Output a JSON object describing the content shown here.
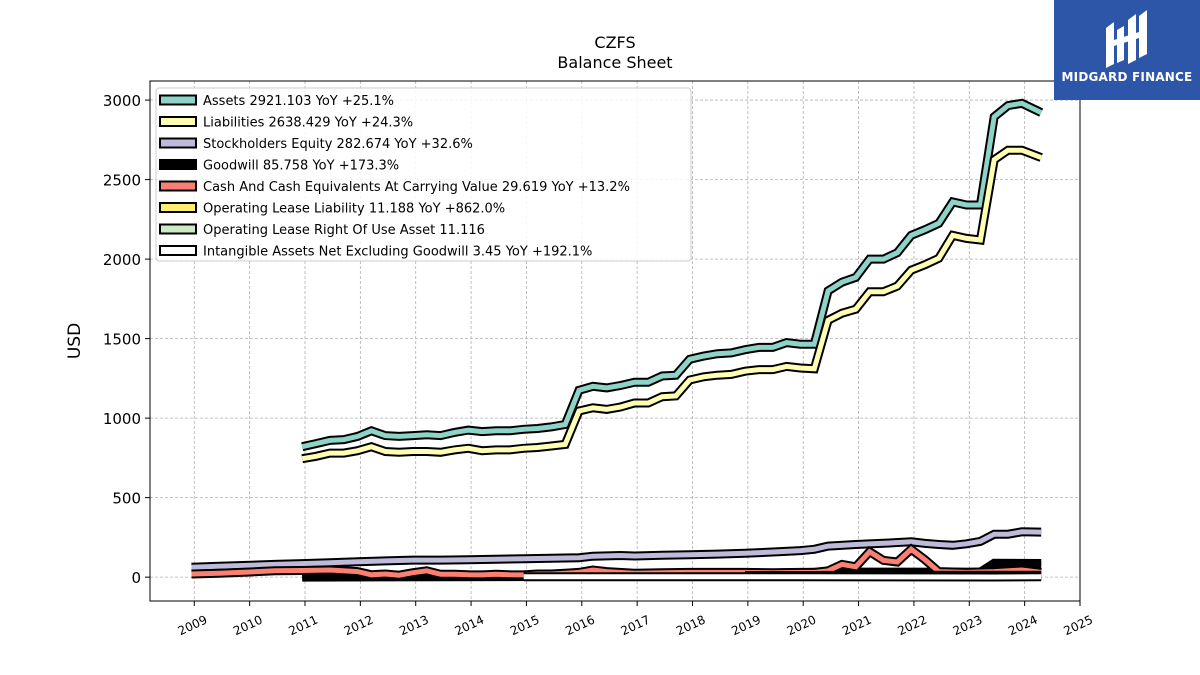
{
  "brand": {
    "name": "MIDGARD FINANCE",
    "color": "#2d56a8"
  },
  "chart_data": {
    "type": "line",
    "title": "CZFS",
    "subtitle": "Balance  Sheet",
    "ylabel": "USD",
    "xlabel": "",
    "xlim": [
      2008.2,
      2025.0
    ],
    "ylim": [
      -150,
      3120
    ],
    "x_ticks": [
      2009,
      2010,
      2011,
      2012,
      2013,
      2014,
      2015,
      2016,
      2017,
      2018,
      2019,
      2020,
      2021,
      2022,
      2023,
      2024,
      2025
    ],
    "y_ticks": [
      0,
      500,
      1000,
      1500,
      2000,
      2500,
      3000
    ],
    "grid": true,
    "legend_position": "top-left",
    "series": [
      {
        "name": "Assets",
        "legend": "Assets  2921.103 YoY +25.1%",
        "color": "#8dd3c7",
        "points": [
          [
            2010.95,
            820
          ],
          [
            2011.2,
            840
          ],
          [
            2011.45,
            860
          ],
          [
            2011.7,
            865
          ],
          [
            2011.95,
            885
          ],
          [
            2012.2,
            920
          ],
          [
            2012.45,
            890
          ],
          [
            2012.7,
            885
          ],
          [
            2012.95,
            890
          ],
          [
            2013.2,
            895
          ],
          [
            2013.45,
            890
          ],
          [
            2013.7,
            910
          ],
          [
            2013.95,
            925
          ],
          [
            2014.2,
            915
          ],
          [
            2014.45,
            920
          ],
          [
            2014.7,
            920
          ],
          [
            2014.95,
            930
          ],
          [
            2015.2,
            935
          ],
          [
            2015.45,
            945
          ],
          [
            2015.7,
            960
          ],
          [
            2015.95,
            1175
          ],
          [
            2016.2,
            1200
          ],
          [
            2016.45,
            1190
          ],
          [
            2016.7,
            1205
          ],
          [
            2016.95,
            1225
          ],
          [
            2017.2,
            1225
          ],
          [
            2017.45,
            1265
          ],
          [
            2017.7,
            1270
          ],
          [
            2017.95,
            1370
          ],
          [
            2018.2,
            1390
          ],
          [
            2018.45,
            1405
          ],
          [
            2018.7,
            1410
          ],
          [
            2018.95,
            1430
          ],
          [
            2019.2,
            1445
          ],
          [
            2019.45,
            1445
          ],
          [
            2019.7,
            1475
          ],
          [
            2019.95,
            1465
          ],
          [
            2020.2,
            1465
          ],
          [
            2020.45,
            1800
          ],
          [
            2020.7,
            1855
          ],
          [
            2020.95,
            1885
          ],
          [
            2021.2,
            2000
          ],
          [
            2021.45,
            2000
          ],
          [
            2021.7,
            2040
          ],
          [
            2021.95,
            2150
          ],
          [
            2022.2,
            2185
          ],
          [
            2022.45,
            2225
          ],
          [
            2022.7,
            2360
          ],
          [
            2022.95,
            2340
          ],
          [
            2023.2,
            2340
          ],
          [
            2023.45,
            2895
          ],
          [
            2023.7,
            2965
          ],
          [
            2023.95,
            2980
          ],
          [
            2024.3,
            2921
          ]
        ]
      },
      {
        "name": "Liabilities",
        "legend": "Liabilities  2638.429 YoY +24.3%",
        "color": "#ffffb3",
        "points": [
          [
            2010.95,
            745
          ],
          [
            2011.2,
            760
          ],
          [
            2011.45,
            780
          ],
          [
            2011.7,
            780
          ],
          [
            2011.95,
            795
          ],
          [
            2012.2,
            820
          ],
          [
            2012.45,
            790
          ],
          [
            2012.7,
            785
          ],
          [
            2012.95,
            790
          ],
          [
            2013.2,
            790
          ],
          [
            2013.45,
            785
          ],
          [
            2013.7,
            800
          ],
          [
            2013.95,
            810
          ],
          [
            2014.2,
            795
          ],
          [
            2014.45,
            800
          ],
          [
            2014.7,
            800
          ],
          [
            2014.95,
            810
          ],
          [
            2015.2,
            815
          ],
          [
            2015.45,
            825
          ],
          [
            2015.7,
            835
          ],
          [
            2015.95,
            1045
          ],
          [
            2016.2,
            1065
          ],
          [
            2016.45,
            1055
          ],
          [
            2016.7,
            1070
          ],
          [
            2016.95,
            1095
          ],
          [
            2017.2,
            1095
          ],
          [
            2017.45,
            1135
          ],
          [
            2017.7,
            1140
          ],
          [
            2017.95,
            1240
          ],
          [
            2018.2,
            1260
          ],
          [
            2018.45,
            1270
          ],
          [
            2018.7,
            1275
          ],
          [
            2018.95,
            1295
          ],
          [
            2019.2,
            1305
          ],
          [
            2019.45,
            1305
          ],
          [
            2019.7,
            1325
          ],
          [
            2019.95,
            1315
          ],
          [
            2020.2,
            1310
          ],
          [
            2020.45,
            1615
          ],
          [
            2020.7,
            1660
          ],
          [
            2020.95,
            1685
          ],
          [
            2021.2,
            1795
          ],
          [
            2021.45,
            1795
          ],
          [
            2021.7,
            1830
          ],
          [
            2021.95,
            1930
          ],
          [
            2022.2,
            1965
          ],
          [
            2022.45,
            2005
          ],
          [
            2022.7,
            2150
          ],
          [
            2022.95,
            2130
          ],
          [
            2023.2,
            2120
          ],
          [
            2023.45,
            2625
          ],
          [
            2023.7,
            2685
          ],
          [
            2023.95,
            2685
          ],
          [
            2024.3,
            2638
          ]
        ]
      },
      {
        "name": "Stockholders Equity",
        "legend": "Stockholders Equity  282.674 YoY +32.6%",
        "color": "#bebada",
        "points": [
          [
            2008.95,
            62
          ],
          [
            2009.45,
            68
          ],
          [
            2009.95,
            74
          ],
          [
            2010.45,
            80
          ],
          [
            2010.95,
            85
          ],
          [
            2011.45,
            90
          ],
          [
            2011.95,
            97
          ],
          [
            2012.45,
            102
          ],
          [
            2012.95,
            107
          ],
          [
            2013.45,
            107
          ],
          [
            2013.95,
            110
          ],
          [
            2014.45,
            113
          ],
          [
            2014.95,
            116
          ],
          [
            2015.45,
            119
          ],
          [
            2015.95,
            122
          ],
          [
            2016.2,
            132
          ],
          [
            2016.7,
            136
          ],
          [
            2016.95,
            133
          ],
          [
            2017.45,
            138
          ],
          [
            2017.95,
            141
          ],
          [
            2018.45,
            145
          ],
          [
            2018.95,
            150
          ],
          [
            2019.45,
            158
          ],
          [
            2019.95,
            167
          ],
          [
            2020.2,
            175
          ],
          [
            2020.45,
            195
          ],
          [
            2020.95,
            205
          ],
          [
            2021.45,
            213
          ],
          [
            2021.95,
            222
          ],
          [
            2022.2,
            212
          ],
          [
            2022.45,
            205
          ],
          [
            2022.7,
            200
          ],
          [
            2022.95,
            210
          ],
          [
            2023.2,
            225
          ],
          [
            2023.45,
            270
          ],
          [
            2023.7,
            270
          ],
          [
            2023.95,
            285
          ],
          [
            2024.3,
            283
          ]
        ]
      },
      {
        "name": "Goodwill",
        "legend": "Goodwill  85.758 YoY +173.3%",
        "color": "#000000",
        "points": [
          [
            2010.95,
            0
          ],
          [
            2015.95,
            5
          ],
          [
            2020.45,
            32
          ],
          [
            2023.2,
            31
          ],
          [
            2023.45,
            88
          ],
          [
            2024.3,
            86
          ]
        ]
      },
      {
        "name": "Cash And Cash Equivalents At Carrying Value",
        "legend": "Cash And Cash Equivalents At Carrying Value  29.619 YoY +13.2%",
        "color": "#fb8072",
        "points": [
          [
            2008.95,
            20
          ],
          [
            2009.45,
            25
          ],
          [
            2009.95,
            32
          ],
          [
            2010.45,
            40
          ],
          [
            2010.95,
            42
          ],
          [
            2011.45,
            45
          ],
          [
            2011.95,
            35
          ],
          [
            2012.2,
            15
          ],
          [
            2012.45,
            20
          ],
          [
            2012.7,
            12
          ],
          [
            2012.95,
            28
          ],
          [
            2013.2,
            40
          ],
          [
            2013.45,
            18
          ],
          [
            2013.7,
            18
          ],
          [
            2013.95,
            15
          ],
          [
            2014.2,
            14
          ],
          [
            2014.45,
            18
          ],
          [
            2014.7,
            15
          ],
          [
            2014.95,
            14
          ],
          [
            2015.2,
            20
          ],
          [
            2015.45,
            20
          ],
          [
            2015.7,
            25
          ],
          [
            2015.95,
            30
          ],
          [
            2016.2,
            45
          ],
          [
            2016.45,
            35
          ],
          [
            2016.95,
            25
          ],
          [
            2017.45,
            28
          ],
          [
            2017.95,
            30
          ],
          [
            2018.45,
            30
          ],
          [
            2018.95,
            30
          ],
          [
            2019.45,
            28
          ],
          [
            2019.95,
            30
          ],
          [
            2020.2,
            30
          ],
          [
            2020.45,
            40
          ],
          [
            2020.7,
            80
          ],
          [
            2020.95,
            65
          ],
          [
            2021.2,
            160
          ],
          [
            2021.45,
            105
          ],
          [
            2021.7,
            95
          ],
          [
            2021.95,
            175
          ],
          [
            2022.2,
            110
          ],
          [
            2022.45,
            35
          ],
          [
            2022.95,
            30
          ],
          [
            2023.45,
            35
          ],
          [
            2023.95,
            45
          ],
          [
            2024.3,
            30
          ]
        ]
      },
      {
        "name": "Operating Lease Liability",
        "legend": "Operating Lease Liability  11.188 YoY +862.0%",
        "color": "#ffed6f",
        "points": [
          [
            2018.95,
            10
          ],
          [
            2020.95,
            11
          ],
          [
            2022.95,
            11
          ],
          [
            2024.3,
            11
          ]
        ]
      },
      {
        "name": "Operating Lease Right Of Use Asset",
        "legend": "Operating Lease Right Of Use Asset  11.116",
        "color": "#ccebc5",
        "points": [
          [
            2018.95,
            10
          ],
          [
            2020.95,
            11
          ],
          [
            2022.95,
            11
          ],
          [
            2024.3,
            11
          ]
        ]
      },
      {
        "name": "Intangible Assets Net Excluding Goodwill",
        "legend": "Intangible Assets Net Excluding Goodwill  3.45 YoY +192.1%",
        "color": "#ffffff",
        "points": [
          [
            2014.95,
            2
          ],
          [
            2019.95,
            2
          ],
          [
            2023.45,
            1
          ],
          [
            2024.3,
            3
          ]
        ]
      }
    ]
  }
}
